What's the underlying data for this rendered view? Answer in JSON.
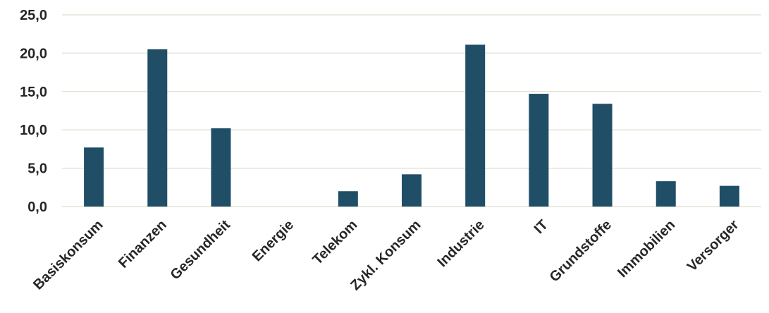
{
  "chart_data": {
    "type": "bar",
    "title": "",
    "xlabel": "",
    "ylabel": "",
    "categories": [
      "Basiskonsum",
      "Finanzen",
      "Gesundheit",
      "Energie",
      "Telekom",
      "Zykl. Konsum",
      "Industrie",
      "IT",
      "Grundstoffe",
      "Immobilien",
      "Versorger"
    ],
    "values": [
      7.7,
      20.5,
      10.2,
      0.0,
      2.0,
      4.2,
      21.1,
      14.7,
      13.4,
      3.3,
      2.7
    ],
    "yticks": [
      "0,0",
      "5,0",
      "10,0",
      "15,0",
      "20,0",
      "25,0"
    ],
    "ylim": [
      0,
      25
    ],
    "grid": true,
    "bar_color": "#1f4e66",
    "grid_color": "#e3e3d6"
  }
}
